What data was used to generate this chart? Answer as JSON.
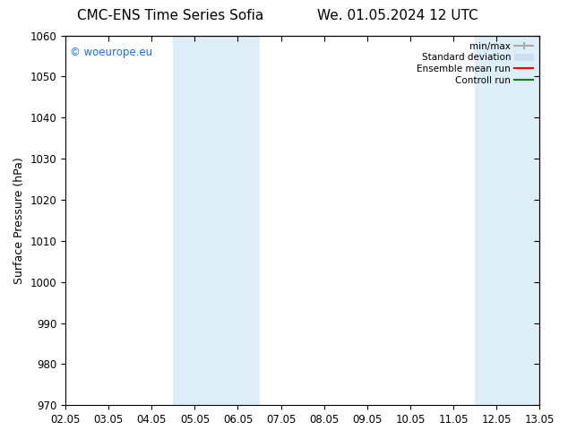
{
  "title_left": "CMC-ENS Time Series Sofia",
  "title_right": "We. 01.05.2024 12 UTC",
  "ylabel": "Surface Pressure (hPa)",
  "ylim": [
    970,
    1060
  ],
  "yticks": [
    970,
    980,
    990,
    1000,
    1010,
    1020,
    1030,
    1040,
    1050,
    1060
  ],
  "xtick_labels": [
    "02.05",
    "03.05",
    "04.05",
    "05.05",
    "06.05",
    "07.05",
    "08.05",
    "09.05",
    "10.05",
    "11.05",
    "12.05",
    "13.05"
  ],
  "xtick_positions": [
    0,
    1,
    2,
    3,
    4,
    5,
    6,
    7,
    8,
    9,
    10,
    11
  ],
  "shaded_bands": [
    {
      "x_start": 2.5,
      "x_end": 3.5,
      "color": "#ddeef8"
    },
    {
      "x_start": 3.5,
      "x_end": 4.5,
      "color": "#ddeef8"
    },
    {
      "x_start": 9.5,
      "x_end": 10.5,
      "color": "#ddeef8"
    },
    {
      "x_start": 10.5,
      "x_end": 11.0,
      "color": "#ddeef8"
    }
  ],
  "watermark_text": "© woeurope.eu",
  "watermark_color": "#1e6fd9",
  "bg_color": "#ffffff",
  "title_fontsize": 11,
  "axis_fontsize": 9,
  "tick_fontsize": 8.5,
  "legend_fontsize": 7.5
}
